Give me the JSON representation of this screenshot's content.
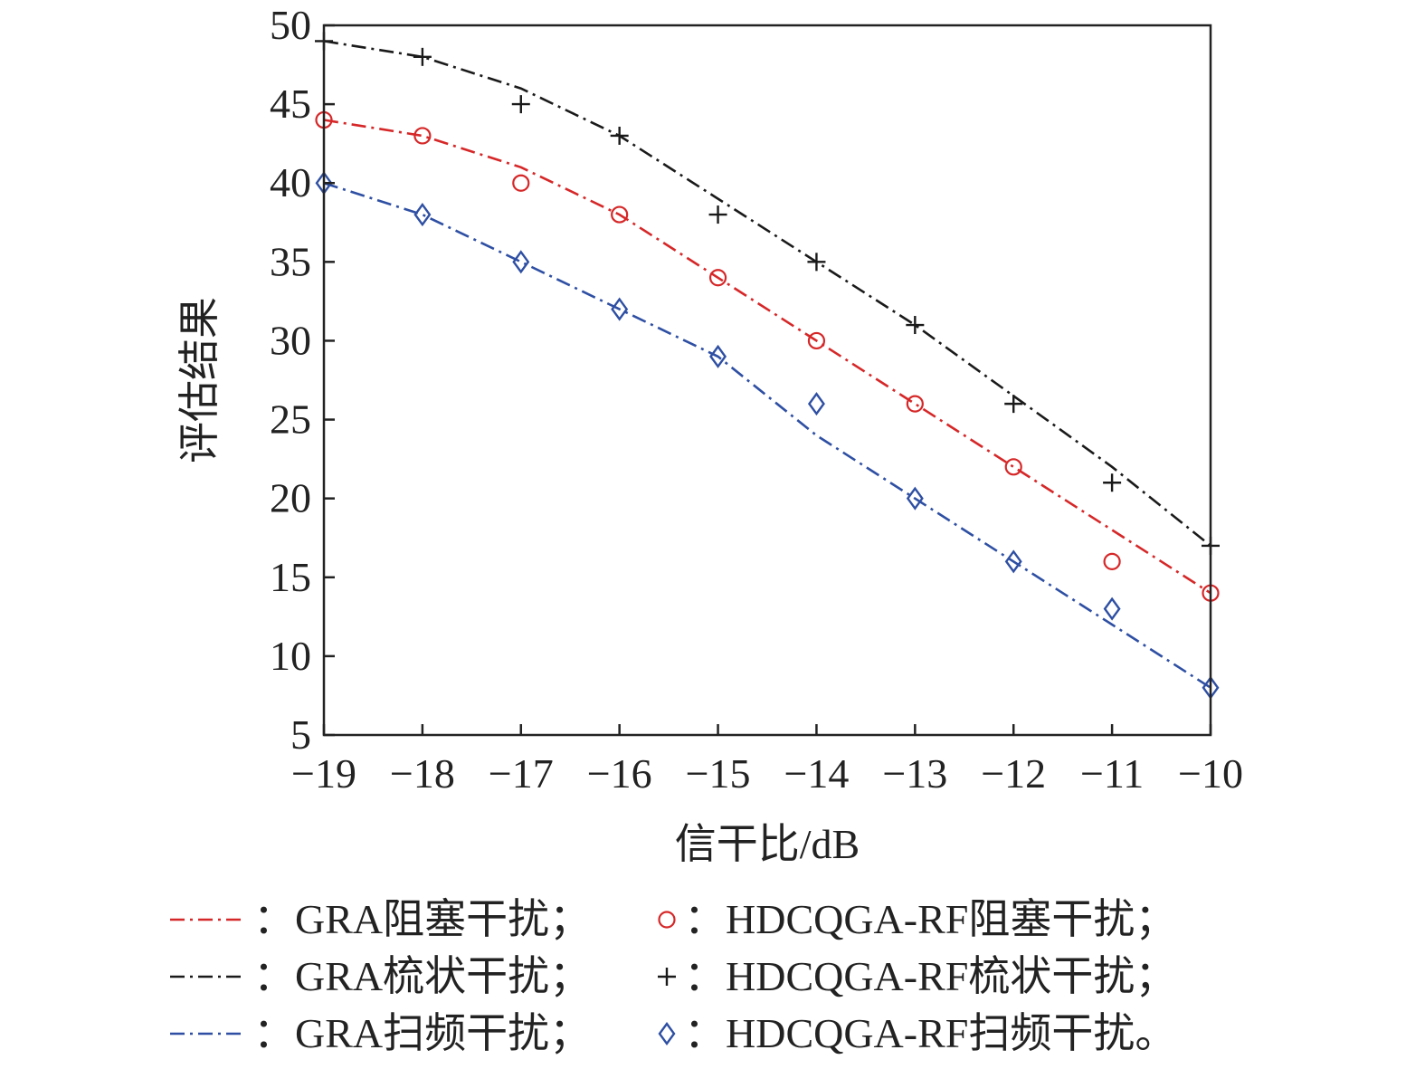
{
  "chart_data": {
    "type": "line",
    "xlabel": "信干比/dB",
    "ylabel": "评估结果",
    "xlim": [
      -19,
      -10
    ],
    "ylim": [
      5,
      50
    ],
    "x_ticks": [
      -19,
      -18,
      -17,
      -16,
      -15,
      -14,
      -13,
      -12,
      -11,
      -10
    ],
    "x_tick_labels": [
      "−19",
      "−18",
      "−17",
      "−16",
      "−15",
      "−14",
      "−13",
      "−12",
      "−11",
      "−10"
    ],
    "y_ticks": [
      5,
      10,
      15,
      20,
      25,
      30,
      35,
      40,
      45,
      50
    ],
    "y_tick_labels": [
      "5",
      "10",
      "15",
      "20",
      "25",
      "30",
      "35",
      "40",
      "45",
      "50"
    ],
    "x": [
      -19,
      -18,
      -17,
      -16,
      -15,
      -14,
      -13,
      -12,
      -11,
      -10
    ],
    "series": [
      {
        "name": "GRA阻塞干扰",
        "kind": "line",
        "color": "#d62728",
        "values": [
          44,
          43,
          41,
          38,
          34,
          30,
          26,
          22,
          18,
          14
        ]
      },
      {
        "name": "GRA梳状干扰",
        "kind": "line",
        "color": "#1a1a1a",
        "values": [
          49,
          48,
          46,
          43,
          39,
          35,
          31,
          26.5,
          22,
          17
        ]
      },
      {
        "name": "GRA扫频干扰",
        "kind": "line",
        "color": "#2e4fa3",
        "values": [
          40,
          38,
          35,
          32,
          29,
          24,
          20,
          16,
          12,
          8
        ]
      },
      {
        "name": "HDCQGA-RF阻塞干扰",
        "kind": "marker",
        "marker": "circle",
        "color": "#d62728",
        "values": [
          44,
          43,
          40,
          38,
          34,
          30,
          26,
          22,
          16,
          14
        ]
      },
      {
        "name": "HDCQGA-RF梳状干扰",
        "kind": "marker",
        "marker": "plus",
        "color": "#1a1a1a",
        "values": [
          49,
          48,
          45,
          43,
          38,
          35,
          31,
          26,
          21,
          17
        ]
      },
      {
        "name": "HDCQGA-RF扫频干扰",
        "kind": "marker",
        "marker": "diamond",
        "color": "#2e4fa3",
        "values": [
          40,
          38,
          35,
          32,
          29,
          26,
          20,
          16,
          13,
          8
        ]
      }
    ],
    "legend": {
      "placement": "bottom",
      "rows": [
        {
          "line_label": "：GRA阻塞干扰；",
          "marker_label": "：HDCQGA-RF阻塞干扰；"
        },
        {
          "line_label": "：GRA梳状干扰；",
          "marker_label": "：HDCQGA-RF梳状干扰；"
        },
        {
          "line_label": "：GRA扫频干扰；",
          "marker_label": "：HDCQGA-RF扫频干扰。"
        }
      ]
    }
  }
}
